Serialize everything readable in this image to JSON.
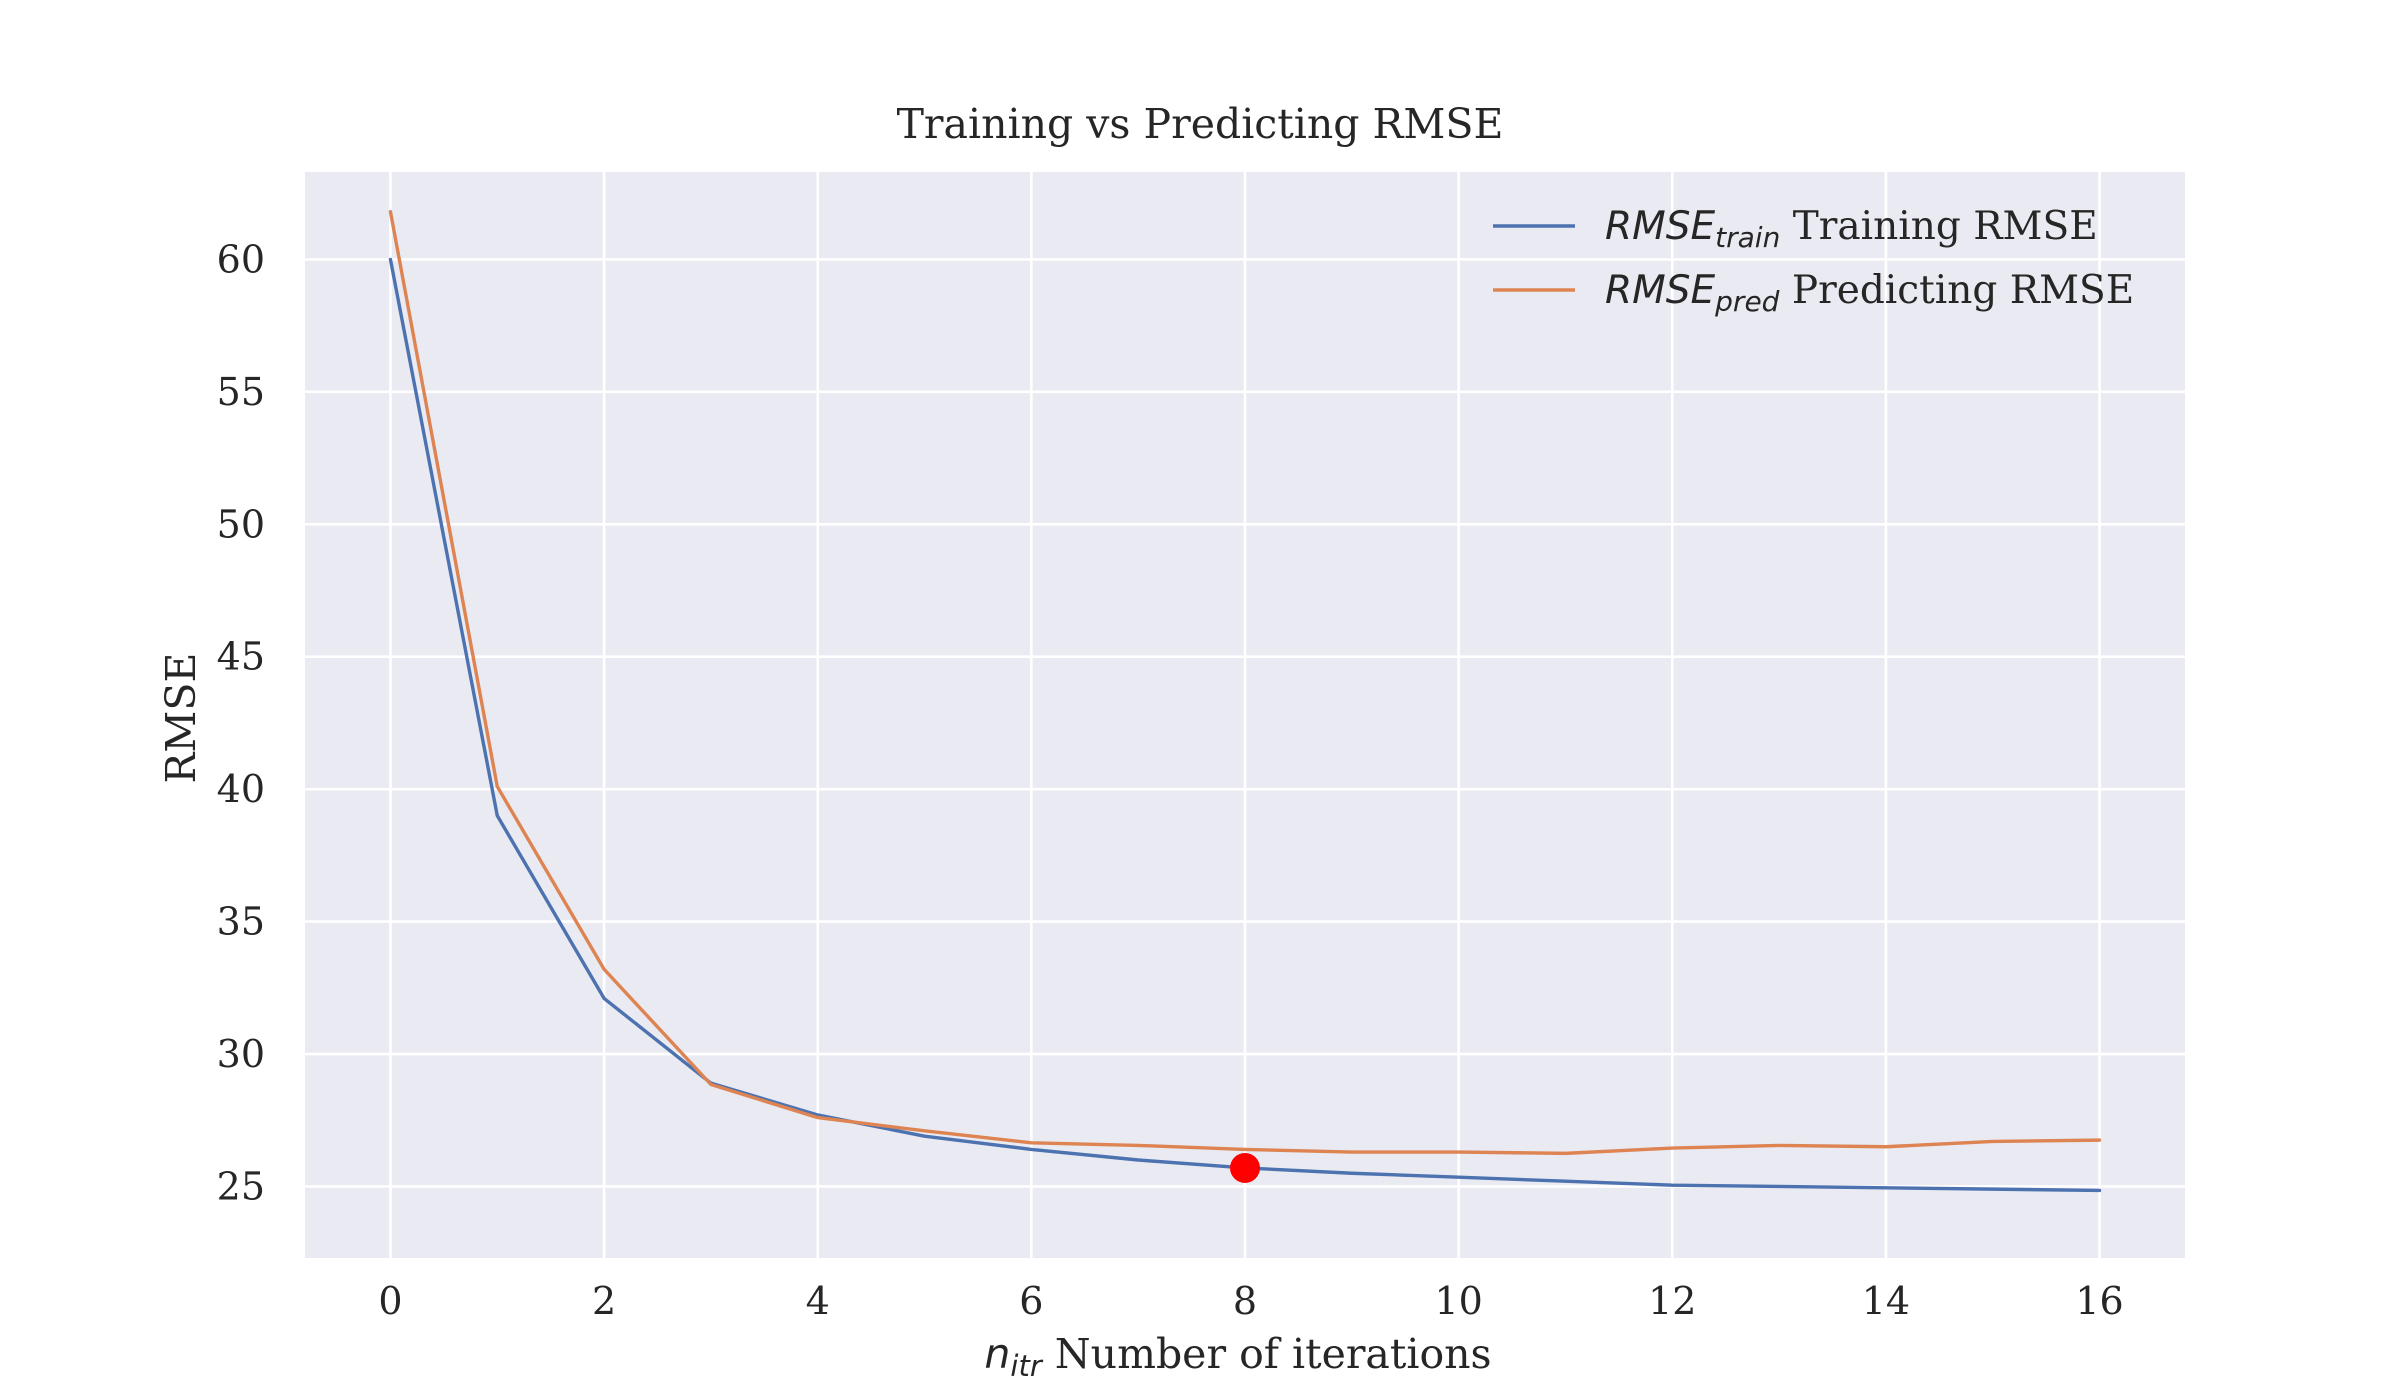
{
  "chart_data": {
    "type": "line",
    "title": "Training vs Predicting RMSE",
    "xlabel": {
      "math_base": "n",
      "math_sub": "itr",
      "text": " Number of iterations"
    },
    "ylabel": "RMSE",
    "xlim": [
      -0.8,
      16.8
    ],
    "ylim": [
      22.3,
      63.3
    ],
    "xticks": [
      0,
      2,
      4,
      6,
      8,
      10,
      12,
      14,
      16
    ],
    "yticks": [
      25,
      30,
      35,
      40,
      45,
      50,
      55,
      60
    ],
    "grid": true,
    "legend_position": "top-right",
    "x": [
      0,
      1,
      2,
      3,
      4,
      5,
      6,
      7,
      8,
      9,
      10,
      11,
      12,
      13,
      14,
      15,
      16
    ],
    "series": [
      {
        "name": "Training RMSE",
        "legend_math_base": "RMSE",
        "legend_math_sub": "train",
        "color": "#4c72b0",
        "values": [
          60.0,
          39.0,
          32.1,
          28.9,
          27.7,
          26.9,
          26.4,
          26.0,
          25.7,
          25.5,
          25.35,
          25.2,
          25.05,
          25.0,
          24.95,
          24.9,
          24.85
        ]
      },
      {
        "name": "Predicting RMSE",
        "legend_math_base": "RMSE",
        "legend_math_sub": "pred",
        "color": "#dd8452",
        "values": [
          61.8,
          40.1,
          33.2,
          28.85,
          27.6,
          27.1,
          26.65,
          26.55,
          26.4,
          26.3,
          26.3,
          26.25,
          26.45,
          26.55,
          26.5,
          26.7,
          26.75
        ]
      }
    ],
    "highlight_point": {
      "x": 8,
      "y": 25.7,
      "color": "#ff0000"
    },
    "colors": {
      "plot_background": "#eaeaf2",
      "grid": "#ffffff",
      "text": "#262626"
    }
  }
}
